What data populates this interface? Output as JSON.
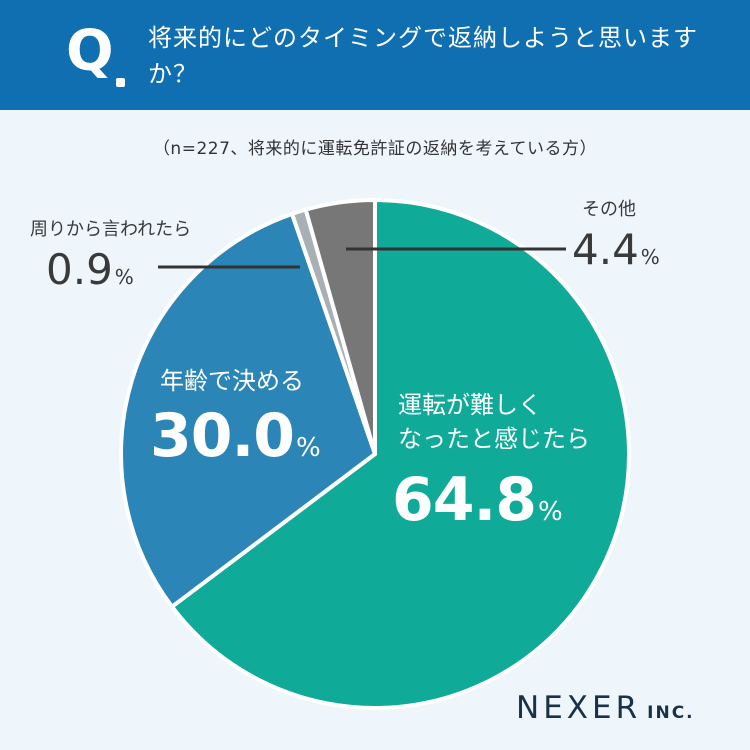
{
  "header": {
    "q_mark": "Q",
    "question": "将来的にどのタイミングで返納しようと思いますか？"
  },
  "subtitle": "（n=227、将来的に運転免許証の返納を考えている方）",
  "chart_data": {
    "type": "pie",
    "start": "12 o'clock, clockwise",
    "slices": [
      {
        "label": "運転が難しくなったと感じたら",
        "value": 64.8,
        "color": "#10aa98"
      },
      {
        "label": "年齢で決める",
        "value": 30.0,
        "color": "#2b86b7"
      },
      {
        "label": "周りから言われたら",
        "value": 0.9,
        "color": "#a8b0b6"
      },
      {
        "label": "その他",
        "value": 4.4,
        "color": "#777777"
      }
    ]
  },
  "labels": {
    "s1_line1": "運転が難しく",
    "s1_line2": "なったと感じたら",
    "s1_value": "64.8",
    "s2_line1": "年齢で決める",
    "s2_value": "30.0",
    "s3_line1": "周りから言われたら",
    "s3_value": "0.9",
    "s4_line1": "その他",
    "s4_value": "4.4",
    "percent": "%"
  },
  "logo": {
    "name": "NEXER",
    "suffix": "INC."
  }
}
